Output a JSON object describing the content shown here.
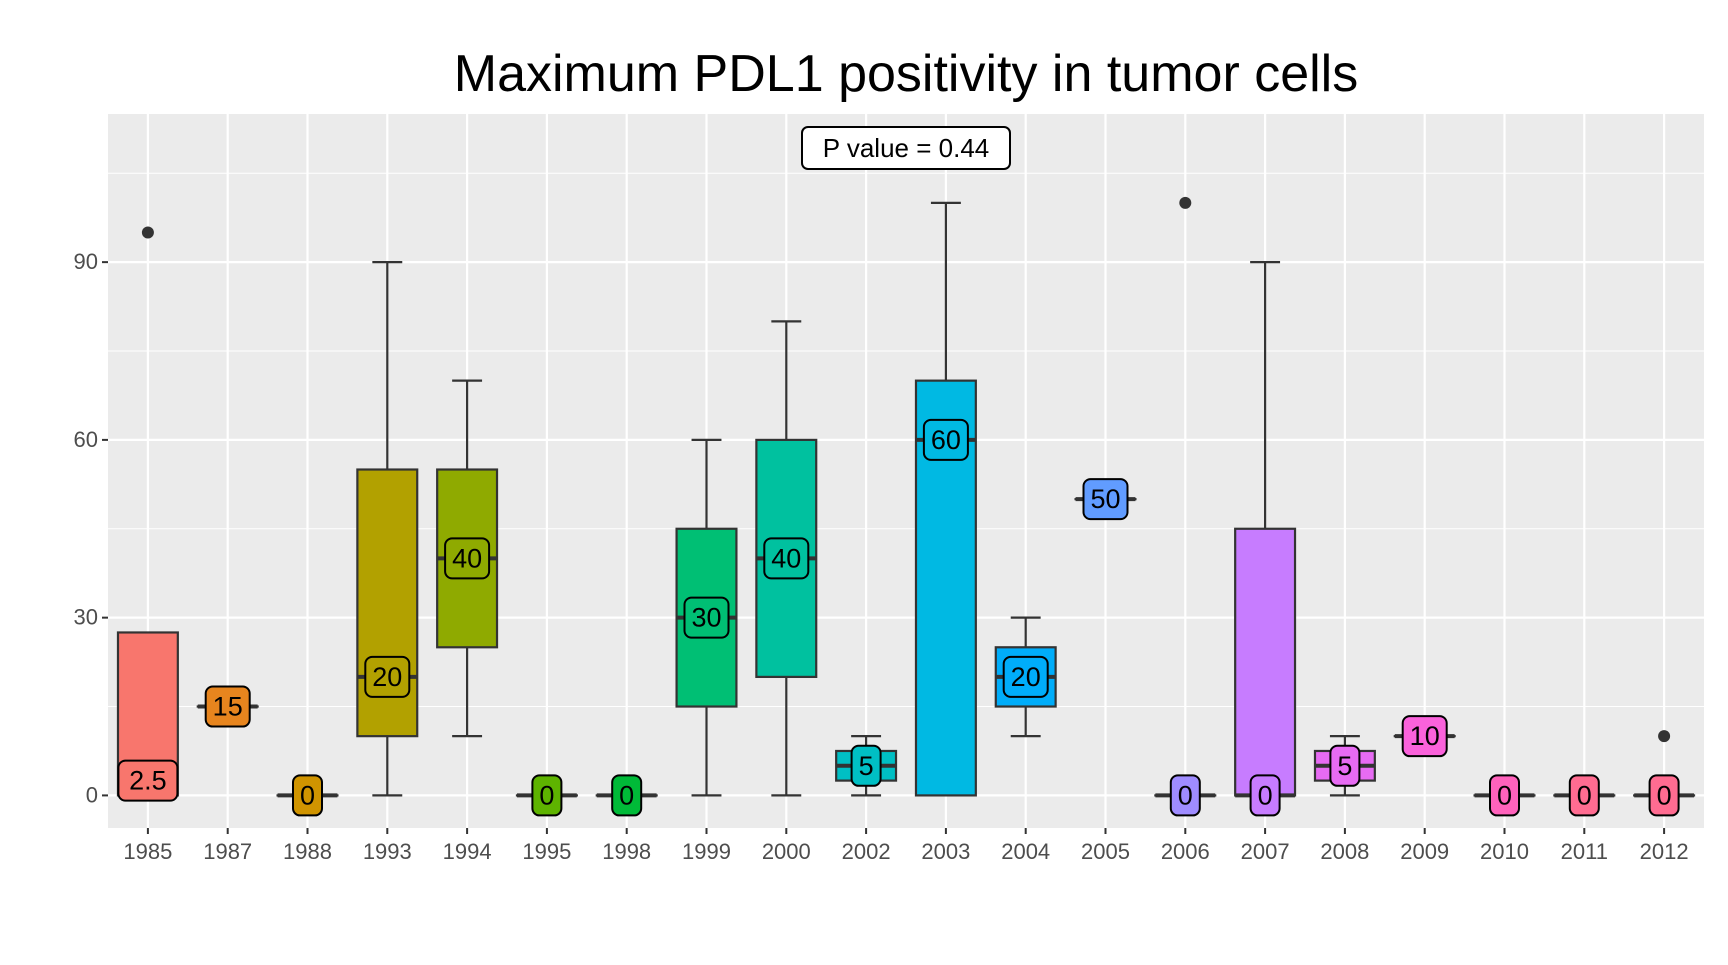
{
  "chart_data": {
    "type": "box",
    "title": "Maximum PDL1 positivity in tumor cells",
    "xlabel": "",
    "ylabel": "",
    "ylim": [
      -5.5,
      115
    ],
    "y_ticks": [
      0,
      30,
      60,
      90
    ],
    "grid": true,
    "annotation": "P value = 0.44",
    "categories": [
      "1985",
      "1987",
      "1988",
      "1993",
      "1994",
      "1995",
      "1998",
      "1999",
      "2000",
      "2002",
      "2003",
      "2004",
      "2005",
      "2006",
      "2007",
      "2008",
      "2009",
      "2010",
      "2011",
      "2012"
    ],
    "colors": [
      "#F8766D",
      "#E7851E",
      "#D09400",
      "#B2A100",
      "#8FAA00",
      "#5EB300",
      "#00BA38",
      "#00BF74",
      "#00C19F",
      "#00BFC4",
      "#00B9E3",
      "#00ADFA",
      "#619CFF",
      "#9F8CFF",
      "#C77CFF",
      "#E76BF3",
      "#FA62DB",
      "#FF62BC",
      "#FF6C91",
      "#FF6C91"
    ],
    "boxes": [
      {
        "category": "1985",
        "lower_whisker": 0,
        "q1": 0,
        "median": 2.5,
        "q3": 27.5,
        "upper_whisker": 27.5,
        "outliers": [
          95
        ],
        "label": "2.5"
      },
      {
        "category": "1987",
        "lower_whisker": 15,
        "q1": 15,
        "median": 15,
        "q3": 15,
        "upper_whisker": 15,
        "outliers": [],
        "label": "15"
      },
      {
        "category": "1988",
        "lower_whisker": 0,
        "q1": 0,
        "median": 0,
        "q3": 0,
        "upper_whisker": 0,
        "outliers": [],
        "label": "0"
      },
      {
        "category": "1993",
        "lower_whisker": 0,
        "q1": 10,
        "median": 20,
        "q3": 55,
        "upper_whisker": 90,
        "outliers": [],
        "label": "20"
      },
      {
        "category": "1994",
        "lower_whisker": 10,
        "q1": 25,
        "median": 40,
        "q3": 55,
        "upper_whisker": 70,
        "outliers": [],
        "label": "40"
      },
      {
        "category": "1995",
        "lower_whisker": 0,
        "q1": 0,
        "median": 0,
        "q3": 0,
        "upper_whisker": 0,
        "outliers": [],
        "label": "0"
      },
      {
        "category": "1998",
        "lower_whisker": 0,
        "q1": 0,
        "median": 0,
        "q3": 0,
        "upper_whisker": 0,
        "outliers": [],
        "label": "0"
      },
      {
        "category": "1999",
        "lower_whisker": 0,
        "q1": 15,
        "median": 30,
        "q3": 45,
        "upper_whisker": 60,
        "outliers": [],
        "label": "30"
      },
      {
        "category": "2000",
        "lower_whisker": 0,
        "q1": 20,
        "median": 40,
        "q3": 60,
        "upper_whisker": 80,
        "outliers": [],
        "label": "40"
      },
      {
        "category": "2002",
        "lower_whisker": 0,
        "q1": 2.5,
        "median": 5,
        "q3": 7.5,
        "upper_whisker": 10,
        "outliers": [],
        "label": "5"
      },
      {
        "category": "2003",
        "lower_whisker": 0,
        "q1": 0,
        "median": 60,
        "q3": 70,
        "upper_whisker": 100,
        "outliers": [],
        "label": "60"
      },
      {
        "category": "2004",
        "lower_whisker": 10,
        "q1": 15,
        "median": 20,
        "q3": 25,
        "upper_whisker": 30,
        "outliers": [],
        "label": "20"
      },
      {
        "category": "2005",
        "lower_whisker": 50,
        "q1": 50,
        "median": 50,
        "q3": 50,
        "upper_whisker": 50,
        "outliers": [],
        "label": "50"
      },
      {
        "category": "2006",
        "lower_whisker": 0,
        "q1": 0,
        "median": 0,
        "q3": 0,
        "upper_whisker": 0,
        "outliers": [
          100
        ],
        "label": "0"
      },
      {
        "category": "2007",
        "lower_whisker": 0,
        "q1": 0,
        "median": 0,
        "q3": 45,
        "upper_whisker": 90,
        "outliers": [],
        "label": "0"
      },
      {
        "category": "2008",
        "lower_whisker": 0,
        "q1": 2.5,
        "median": 5,
        "q3": 7.5,
        "upper_whisker": 10,
        "outliers": [],
        "label": "5"
      },
      {
        "category": "2009",
        "lower_whisker": 10,
        "q1": 10,
        "median": 10,
        "q3": 10,
        "upper_whisker": 10,
        "outliers": [],
        "label": "10"
      },
      {
        "category": "2010",
        "lower_whisker": 0,
        "q1": 0,
        "median": 0,
        "q3": 0,
        "upper_whisker": 0,
        "outliers": [],
        "label": "0"
      },
      {
        "category": "2011",
        "lower_whisker": 0,
        "q1": 0,
        "median": 0,
        "q3": 0,
        "upper_whisker": 0,
        "outliers": [],
        "label": "0"
      },
      {
        "category": "2012",
        "lower_whisker": 0,
        "q1": 0,
        "median": 0,
        "q3": 0,
        "upper_whisker": 0,
        "outliers": [
          10
        ],
        "label": "0"
      }
    ]
  }
}
